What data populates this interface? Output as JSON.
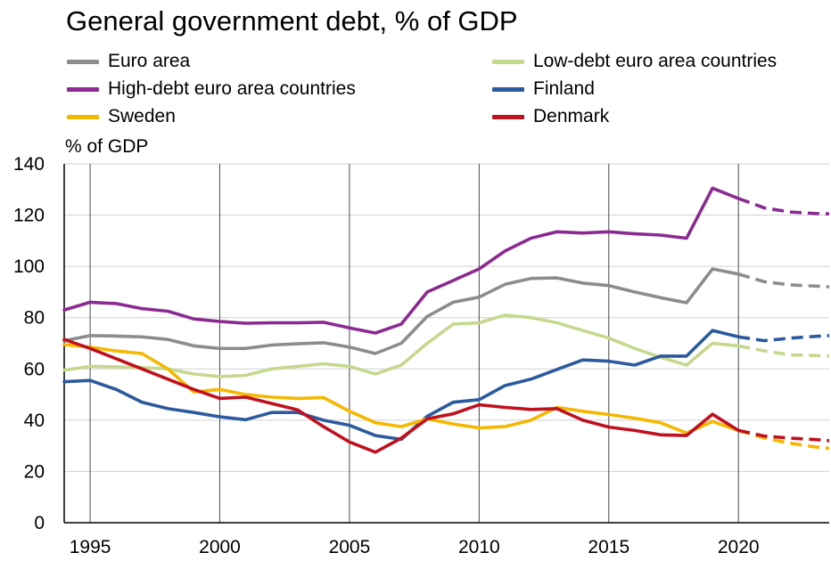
{
  "chart_data": {
    "type": "line",
    "title": "General government debt, % of GDP",
    "ylabel": "% of GDP",
    "xlim": [
      1994,
      2023.5
    ],
    "ylim": [
      0,
      140
    ],
    "xticks": [
      1995,
      2000,
      2005,
      2010,
      2015,
      2020
    ],
    "yticks": [
      0,
      20,
      40,
      60,
      80,
      100,
      120,
      140
    ],
    "grid": true,
    "legend_position": "top",
    "forecast_from_index": 26,
    "series": [
      {
        "name": "Euro area",
        "color": "#8c8c8c",
        "x": [
          1994,
          1995,
          1996,
          1997,
          1998,
          1999,
          2000,
          2001,
          2002,
          2003,
          2004,
          2005,
          2006,
          2007,
          2008,
          2009,
          2010,
          2011,
          2012,
          2013,
          2014,
          2015,
          2016,
          2017,
          2018,
          2019,
          2020,
          2021,
          2022,
          2023,
          2023.5
        ],
        "values": [
          71,
          73,
          72.8,
          72.5,
          71.5,
          69,
          68,
          68,
          69.3,
          69.8,
          70.2,
          68.5,
          66,
          70,
          80.5,
          86,
          88,
          93,
          95.3,
          95.5,
          93.5,
          92.5,
          90,
          87.8,
          85.8,
          99,
          97,
          94,
          92.8,
          92.3,
          92
        ]
      },
      {
        "name": "Low-debt euro area countries",
        "color": "#c5d98e",
        "x": [
          1994,
          1995,
          1996,
          1997,
          1998,
          1999,
          2000,
          2001,
          2002,
          2003,
          2004,
          2005,
          2006,
          2007,
          2008,
          2009,
          2010,
          2011,
          2012,
          2013,
          2014,
          2015,
          2016,
          2017,
          2018,
          2019,
          2020,
          2021,
          2022,
          2023,
          2023.5
        ],
        "values": [
          59.5,
          61,
          60.8,
          60.5,
          60,
          58,
          57,
          57.5,
          60,
          61,
          62,
          61,
          58,
          61.5,
          70,
          77.5,
          78,
          81,
          80,
          78,
          75,
          72,
          68,
          64.5,
          61.5,
          70,
          69,
          67,
          65.5,
          65.2,
          65
        ]
      },
      {
        "name": "High-debt euro area countries",
        "color": "#8b2a91",
        "x": [
          1994,
          1995,
          1996,
          1997,
          1998,
          1999,
          2000,
          2001,
          2002,
          2003,
          2004,
          2005,
          2006,
          2007,
          2008,
          2009,
          2010,
          2011,
          2012,
          2013,
          2014,
          2015,
          2016,
          2017,
          2018,
          2019,
          2020,
          2021,
          2022,
          2023,
          2023.5
        ],
        "values": [
          83,
          86,
          85.5,
          83.5,
          82.5,
          79.5,
          78.5,
          77.8,
          78,
          78,
          78.2,
          76,
          74,
          77.5,
          90,
          94.5,
          99,
          106,
          111,
          113.5,
          113,
          113.5,
          112.7,
          112.2,
          111,
          130.5,
          126.5,
          122.8,
          121.2,
          120.6,
          120.5
        ]
      },
      {
        "name": "Finland",
        "color": "#2b5a9e",
        "x": [
          1994,
          1995,
          1996,
          1997,
          1998,
          1999,
          2000,
          2001,
          2002,
          2003,
          2004,
          2005,
          2006,
          2007,
          2008,
          2009,
          2010,
          2011,
          2012,
          2013,
          2014,
          2015,
          2016,
          2017,
          2018,
          2019,
          2020,
          2021,
          2022,
          2023,
          2023.5
        ],
        "values": [
          55,
          55.5,
          52,
          47,
          44.5,
          43,
          41.3,
          40.2,
          43,
          43,
          40,
          38,
          34,
          32.5,
          41.5,
          47,
          48,
          53.5,
          56,
          59.8,
          63.5,
          63,
          61.5,
          65,
          65,
          75,
          72.5,
          71,
          72,
          72.7,
          73
        ]
      },
      {
        "name": "Sweden",
        "color": "#f5b800",
        "x": [
          1994,
          1995,
          1996,
          1997,
          1998,
          1999,
          2000,
          2001,
          2002,
          2003,
          2004,
          2005,
          2006,
          2007,
          2008,
          2009,
          2010,
          2011,
          2012,
          2013,
          2014,
          2015,
          2016,
          2017,
          2018,
          2019,
          2020,
          2021,
          2022,
          2023,
          2023.5
        ],
        "values": [
          69.5,
          68.5,
          67,
          66,
          60,
          51,
          52,
          50,
          49,
          48.5,
          48.8,
          43.5,
          39,
          37.5,
          40.5,
          38.5,
          37,
          37.5,
          40,
          45,
          43.5,
          42.2,
          40.8,
          39,
          35,
          39.5,
          36,
          33,
          31,
          29.5,
          29
        ]
      },
      {
        "name": "Denmark",
        "color": "#c0111e",
        "x": [
          1994,
          1995,
          1996,
          1997,
          1998,
          1999,
          2000,
          2001,
          2002,
          2003,
          2004,
          2005,
          2006,
          2007,
          2008,
          2009,
          2010,
          2011,
          2012,
          2013,
          2014,
          2015,
          2016,
          2017,
          2018,
          2019,
          2020,
          2021,
          2022,
          2023,
          2023.5
        ],
        "values": [
          71.5,
          68,
          64,
          60,
          56,
          52,
          48.5,
          49,
          46.5,
          44,
          37.5,
          31.5,
          27.5,
          33,
          40.5,
          42.5,
          46,
          45,
          44.2,
          44.5,
          40,
          37.3,
          36,
          34.3,
          34,
          42.3,
          36,
          33.8,
          33,
          32.4,
          32
        ]
      }
    ]
  }
}
